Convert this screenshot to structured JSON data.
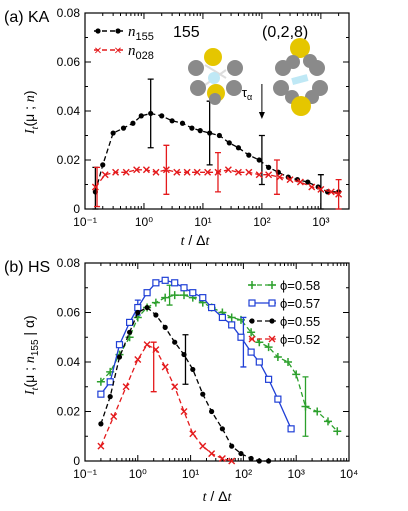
{
  "chart_data": [
    {
      "panel_label": "(a) KA",
      "type": "line",
      "x_scale": "log",
      "xlim": [
        0.1,
        3000
      ],
      "ylim": [
        0,
        0.08
      ],
      "ylabel": "I_t(μ ; n)",
      "xlabel": "t / Δt",
      "x_tick_labels": [
        "10⁻¹",
        "10⁰",
        "10¹",
        "10²",
        "10³"
      ],
      "x_ticks": [
        0.1,
        1,
        10,
        100,
        1000
      ],
      "y_ticks": [
        0,
        0.02,
        0.04,
        0.06,
        0.08
      ],
      "y_tick_labels": [
        "0",
        "0.02",
        "0.04",
        "0.06",
        "0.08"
      ],
      "legend_position": "top-left",
      "annotations": {
        "cluster_155": "155",
        "cluster_028": "(0,2,8)",
        "tau_alpha": "τα",
        "tau_alpha_x": 100
      },
      "series": [
        {
          "name": "n155",
          "name_base": "n",
          "name_sub": "155",
          "color": "#000000",
          "marker": "circle",
          "x": [
            0.15,
            0.2,
            0.3,
            0.45,
            0.65,
            0.9,
            1.3,
            2,
            3,
            4.5,
            6.5,
            9,
            13,
            19,
            28,
            40,
            60,
            90,
            130,
            190,
            280,
            400,
            600,
            900,
            1300,
            2000
          ],
          "y": [
            0.007,
            0.018,
            0.031,
            0.033,
            0.035,
            0.038,
            0.039,
            0.038,
            0.036,
            0.035,
            0.033,
            0.032,
            0.031,
            0.03,
            0.027,
            0.025,
            0.022,
            0.02,
            0.017,
            0.015,
            0.013,
            0.012,
            0.011,
            0.009,
            0.007,
            0.007
          ],
          "error_bars": [
            {
              "x": 0.15,
              "y": 0.007,
              "err": 0.01
            },
            {
              "x": 1.3,
              "y": 0.039,
              "err": 0.014
            },
            {
              "x": 13,
              "y": 0.031,
              "err": 0.013
            },
            {
              "x": 100,
              "y": 0.02,
              "err": 0.01
            },
            {
              "x": 1000,
              "y": 0.007,
              "err": 0.007
            }
          ]
        },
        {
          "name": "n028",
          "name_base": "n",
          "name_sub": "028",
          "color": "#e41a1c",
          "marker": "x",
          "x": [
            0.15,
            0.22,
            0.33,
            0.5,
            0.75,
            1.1,
            1.6,
            2.4,
            3.6,
            5.4,
            8,
            12,
            18,
            27,
            40,
            60,
            90,
            130,
            200,
            300,
            450,
            700,
            1000,
            1500,
            2000
          ],
          "y": [
            0.009,
            0.014,
            0.015,
            0.015,
            0.016,
            0.016,
            0.015,
            0.016,
            0.015,
            0.015,
            0.015,
            0.015,
            0.015,
            0.016,
            0.015,
            0.015,
            0.014,
            0.014,
            0.013,
            0.012,
            0.011,
            0.009,
            0.008,
            0.007,
            0.006
          ],
          "error_bars": [
            {
              "x": 0.16,
              "y": 0.009,
              "err": 0.008
            },
            {
              "x": 2.4,
              "y": 0.016,
              "err": 0.01
            },
            {
              "x": 18,
              "y": 0.015,
              "err": 0.008
            },
            {
              "x": 180,
              "y": 0.013,
              "err": 0.007
            },
            {
              "x": 2000,
              "y": 0.006,
              "err": 0.006
            }
          ]
        }
      ]
    },
    {
      "panel_label": "(b) HS",
      "type": "line",
      "x_scale": "log",
      "xlim": [
        0.1,
        10000
      ],
      "ylim": [
        0,
        0.08
      ],
      "ylabel": "I_t(μ ; n155 | α)",
      "xlabel": "t / Δt",
      "x_ticks": [
        0.1,
        1,
        10,
        100,
        1000,
        10000
      ],
      "x_tick_labels": [
        "10⁻¹",
        "10⁰",
        "10¹",
        "10²",
        "10³",
        "10⁴"
      ],
      "y_ticks": [
        0,
        0.02,
        0.04,
        0.06,
        0.08
      ],
      "y_tick_labels": [
        "0",
        "0.02",
        "0.04",
        "0.06",
        "0.08"
      ],
      "legend_position": "top-right",
      "series": [
        {
          "name": "ϕ=0.58",
          "color": "#2ca02c",
          "marker": "plus",
          "x": [
            0.2,
            0.3,
            0.45,
            0.7,
            1,
            1.5,
            2.2,
            3.3,
            5,
            7.5,
            11,
            17,
            25,
            40,
            60,
            90,
            140,
            200,
            300,
            450,
            700,
            1000,
            1500,
            2500,
            4000,
            6000
          ],
          "y": [
            0.032,
            0.036,
            0.043,
            0.05,
            0.058,
            0.062,
            0.064,
            0.066,
            0.067,
            0.067,
            0.066,
            0.064,
            0.062,
            0.06,
            0.058,
            0.057,
            0.052,
            0.048,
            0.046,
            0.042,
            0.04,
            0.035,
            0.022,
            0.02,
            0.016,
            0.012
          ],
          "error_bars": [
            {
              "x": 4,
              "y": 0.067,
              "err": 0.004
            },
            {
              "x": 1500,
              "y": 0.022,
              "err": 0.012
            }
          ]
        },
        {
          "name": "ϕ=0.57",
          "color": "#1f3fd6",
          "marker": "square",
          "x": [
            0.2,
            0.3,
            0.45,
            0.7,
            1,
            1.5,
            2.2,
            3.3,
            5,
            7.5,
            11,
            17,
            25,
            40,
            60,
            90,
            140,
            200,
            300,
            450,
            800
          ],
          "y": [
            0.027,
            0.032,
            0.047,
            0.056,
            0.062,
            0.068,
            0.072,
            0.073,
            0.072,
            0.07,
            0.068,
            0.066,
            0.062,
            0.058,
            0.055,
            0.05,
            0.044,
            0.04,
            0.033,
            0.025,
            0.013
          ],
          "error_bars": [
            {
              "x": 1,
              "y": 0.062,
              "err": 0.003
            },
            {
              "x": 100,
              "y": 0.048,
              "err": 0.01
            }
          ]
        },
        {
          "name": "ϕ=0.55",
          "color": "#000000",
          "marker": "circle",
          "x": [
            0.2,
            0.3,
            0.45,
            0.7,
            1,
            1.5,
            2.2,
            3.3,
            5,
            7.5,
            11,
            17,
            25,
            40,
            60,
            90,
            140,
            200,
            300
          ],
          "y": [
            0.015,
            0.026,
            0.042,
            0.052,
            0.06,
            0.062,
            0.059,
            0.054,
            0.048,
            0.043,
            0.037,
            0.027,
            0.02,
            0.013,
            0.006,
            0.003,
            0.001,
            0.0,
            0.0
          ],
          "error_bars": [
            {
              "x": 8,
              "y": 0.041,
              "err": 0.01
            }
          ]
        },
        {
          "name": "ϕ=0.52",
          "color": "#e41a1c",
          "marker": "x",
          "x": [
            0.2,
            0.35,
            0.6,
            1.0,
            1.5,
            2.2,
            3.3,
            5,
            7.5,
            11,
            17,
            25,
            40,
            60
          ],
          "y": [
            0.006,
            0.018,
            0.03,
            0.041,
            0.047,
            0.045,
            0.038,
            0.03,
            0.02,
            0.011,
            0.006,
            0.003,
            0.001,
            0.0
          ],
          "error_bars": [
            {
              "x": 2,
              "y": 0.038,
              "err": 0.01
            }
          ]
        }
      ]
    }
  ]
}
